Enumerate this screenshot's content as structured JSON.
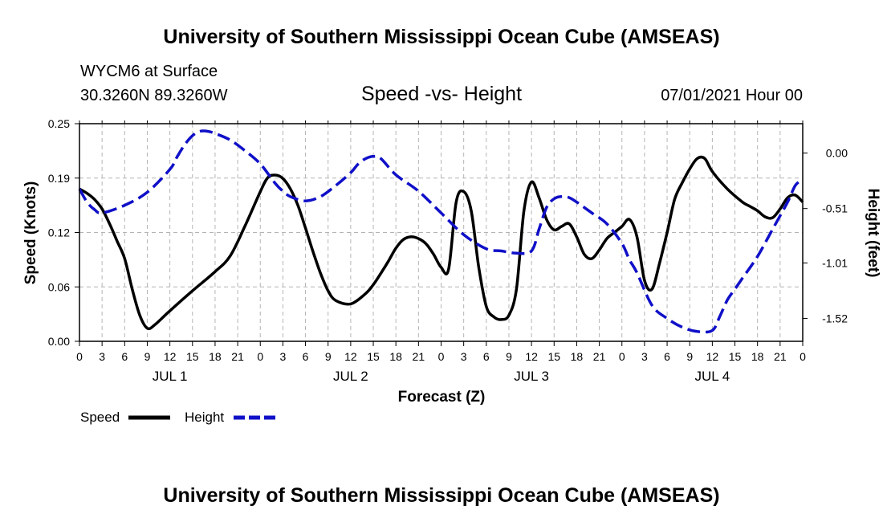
{
  "header": {
    "title_top": "University of Southern Mississippi Ocean Cube (AMSEAS)",
    "station": "WYCM6 at Surface",
    "coords": "30.3260N  89.3260W",
    "plot_title": "Speed -vs- Height",
    "datetime": "07/01/2021 Hour 00",
    "title_bottom": "University of Southern Mississippi Ocean Cube (AMSEAS)"
  },
  "colors": {
    "speed": "#000000",
    "height": "#1010c8",
    "grid": "#b4b4b4"
  },
  "chart_data": {
    "type": "line",
    "title": "Speed -vs- Height",
    "xlabel": "Forecast (Z)",
    "ylabel": "Speed (Knots)",
    "y2label": "Height (feet)",
    "xlim": [
      0,
      96
    ],
    "ylim": [
      0,
      0.25
    ],
    "y2lim": [
      -1.73,
      0.27
    ],
    "x_ticks": [
      0,
      3,
      6,
      9,
      12,
      15,
      18,
      21,
      24,
      27,
      30,
      33,
      36,
      39,
      42,
      45,
      48,
      51,
      54,
      57,
      60,
      63,
      66,
      69,
      72,
      75,
      78,
      81,
      84,
      87,
      90,
      93,
      96
    ],
    "x_tick_labels": [
      "0",
      "3",
      "6",
      "9",
      "12",
      "15",
      "18",
      "21",
      "0",
      "3",
      "6",
      "9",
      "12",
      "15",
      "18",
      "21",
      "0",
      "3",
      "6",
      "9",
      "12",
      "15",
      "18",
      "21",
      "0",
      "3",
      "6",
      "9",
      "12",
      "15",
      "18",
      "21",
      "0"
    ],
    "day_labels": [
      {
        "x": 12,
        "label": "JUL 1"
      },
      {
        "x": 36,
        "label": "JUL 2"
      },
      {
        "x": 60,
        "label": "JUL 3"
      },
      {
        "x": 84,
        "label": "JUL 4"
      }
    ],
    "y_ticks": [
      0,
      0.0625,
      0.125,
      0.1875,
      0.25
    ],
    "y_tick_labels": [
      "0.00",
      "0.06",
      "0.12",
      "0.19",
      "0.25"
    ],
    "y2_ticks": [
      0.0,
      -0.51,
      -1.01,
      -1.52
    ],
    "y2_tick_labels": [
      "0.00",
      "-0.51",
      "-1.01",
      "-1.52"
    ],
    "grid": true,
    "legend": "bottom-left",
    "series": [
      {
        "name": "Speed",
        "axis": "left",
        "style": "solid",
        "x": [
          0,
          1,
          2,
          3,
          4,
          5,
          6,
          7,
          8,
          9,
          10,
          12,
          15,
          18,
          20,
          22,
          24,
          25,
          26,
          27,
          28,
          29,
          30,
          31,
          32,
          33,
          34,
          36,
          38,
          39,
          40,
          41,
          42,
          43,
          44,
          45,
          46,
          47,
          48,
          49,
          50,
          51,
          52,
          53,
          54,
          55,
          56,
          57,
          58,
          59,
          60,
          61,
          62,
          63,
          64,
          65,
          66,
          67,
          68,
          69,
          70,
          71,
          72,
          73,
          74,
          75,
          76,
          77,
          78,
          79,
          80,
          81,
          82,
          83,
          84,
          86,
          88,
          89,
          90,
          91,
          92,
          93,
          94,
          95,
          96
        ],
        "values": [
          0.175,
          0.17,
          0.163,
          0.152,
          0.135,
          0.115,
          0.095,
          0.06,
          0.03,
          0.015,
          0.019,
          0.035,
          0.058,
          0.08,
          0.098,
          0.133,
          0.172,
          0.188,
          0.191,
          0.187,
          0.175,
          0.156,
          0.13,
          0.103,
          0.078,
          0.058,
          0.047,
          0.043,
          0.055,
          0.065,
          0.078,
          0.092,
          0.107,
          0.117,
          0.12,
          0.118,
          0.112,
          0.1,
          0.085,
          0.083,
          0.16,
          0.172,
          0.15,
          0.085,
          0.04,
          0.028,
          0.025,
          0.03,
          0.06,
          0.15,
          0.183,
          0.165,
          0.14,
          0.128,
          0.132,
          0.135,
          0.12,
          0.1,
          0.095,
          0.105,
          0.118,
          0.125,
          0.132,
          0.14,
          0.12,
          0.07,
          0.06,
          0.09,
          0.125,
          0.163,
          0.182,
          0.198,
          0.21,
          0.21,
          0.195,
          0.175,
          0.16,
          0.155,
          0.15,
          0.143,
          0.142,
          0.152,
          0.165,
          0.168,
          0.16
        ]
      },
      {
        "name": "Height",
        "axis": "right",
        "style": "dashed",
        "x": [
          0,
          1,
          2,
          3,
          6,
          9,
          12,
          13,
          14,
          15,
          16,
          17,
          18,
          20,
          22,
          24,
          26,
          27,
          28,
          30,
          32,
          34,
          36,
          37,
          38,
          39,
          40,
          42,
          45,
          48,
          51,
          54,
          56,
          58,
          60,
          61,
          62,
          63,
          64,
          65,
          66,
          67,
          68,
          70,
          72,
          73,
          74,
          76,
          78,
          80,
          82,
          84,
          85,
          86,
          87,
          88,
          90,
          92,
          94,
          95,
          96
        ],
        "values": [
          -0.33,
          -0.45,
          -0.52,
          -0.55,
          -0.48,
          -0.36,
          -0.15,
          -0.03,
          0.08,
          0.16,
          0.2,
          0.2,
          0.18,
          0.12,
          0.02,
          -0.1,
          -0.28,
          -0.35,
          -0.4,
          -0.44,
          -0.4,
          -0.3,
          -0.18,
          -0.1,
          -0.05,
          -0.03,
          -0.05,
          -0.2,
          -0.35,
          -0.55,
          -0.75,
          -0.88,
          -0.9,
          -0.92,
          -0.9,
          -0.7,
          -0.5,
          -0.42,
          -0.4,
          -0.41,
          -0.45,
          -0.5,
          -0.55,
          -0.65,
          -0.83,
          -0.98,
          -1.1,
          -1.4,
          -1.52,
          -1.6,
          -1.64,
          -1.63,
          -1.5,
          -1.35,
          -1.25,
          -1.15,
          -0.95,
          -0.7,
          -0.45,
          -0.3,
          -0.24
        ]
      }
    ]
  }
}
